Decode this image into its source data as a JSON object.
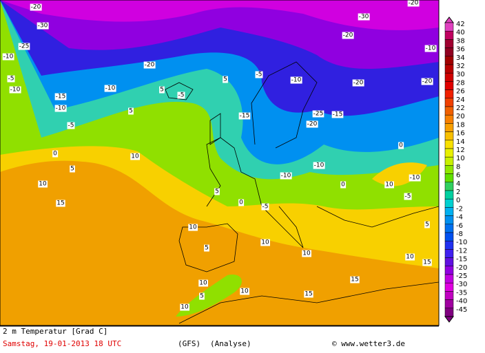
{
  "map": {
    "legend": [
      {
        "value": "42",
        "color": "#e040c0"
      },
      {
        "value": "40",
        "color": "#c00060"
      },
      {
        "value": "38",
        "color": "#a00030"
      },
      {
        "value": "36",
        "color": "#900020"
      },
      {
        "value": "34",
        "color": "#a00000"
      },
      {
        "value": "32",
        "color": "#b80000"
      },
      {
        "value": "30",
        "color": "#d00000"
      },
      {
        "value": "28",
        "color": "#e00000"
      },
      {
        "value": "26",
        "color": "#f02000"
      },
      {
        "value": "24",
        "color": "#f04000"
      },
      {
        "value": "22",
        "color": "#f06000"
      },
      {
        "value": "20",
        "color": "#f88000"
      },
      {
        "value": "18",
        "color": "#f8a000"
      },
      {
        "value": "16",
        "color": "#f8c000"
      },
      {
        "value": "14",
        "color": "#f8e000"
      },
      {
        "value": "12",
        "color": "#e8f000"
      },
      {
        "value": "10",
        "color": "#c8f000"
      },
      {
        "value": "8",
        "color": "#90e800"
      },
      {
        "value": "6",
        "color": "#60e000"
      },
      {
        "value": "4",
        "color": "#30d060"
      },
      {
        "value": "2",
        "color": "#00d0a0"
      },
      {
        "value": "0",
        "color": "#00d0d0"
      },
      {
        "value": "-2",
        "color": "#00b0f0"
      },
      {
        "value": "-4",
        "color": "#0090f0"
      },
      {
        "value": "-6",
        "color": "#0070f0"
      },
      {
        "value": "-8",
        "color": "#0050f0"
      },
      {
        "value": "-10",
        "color": "#2030f0"
      },
      {
        "value": "-12",
        "color": "#4020f0"
      },
      {
        "value": "-15",
        "color": "#6010e0"
      },
      {
        "value": "-20",
        "color": "#9000e0"
      },
      {
        "value": "-25",
        "color": "#c000e0"
      },
      {
        "value": "-30",
        "color": "#e000e0"
      },
      {
        "value": "-35",
        "color": "#c000c0"
      },
      {
        "value": "-40",
        "color": "#a000a0"
      },
      {
        "value": "-45",
        "color": "#800080"
      }
    ],
    "contour_labels": [
      "-20",
      "-30",
      "-25",
      "-10",
      "-5",
      "-10",
      "-15",
      "-10",
      "-5",
      "-10",
      "-20",
      "-5",
      "5",
      "5",
      "0",
      "5",
      "10",
      "15",
      "10",
      "5",
      "-5",
      "-10",
      "-15",
      "-20",
      "-25",
      "-10",
      "-10",
      "-5",
      "0",
      "5",
      "0",
      "10",
      "10",
      "5",
      "10",
      "10",
      "15",
      "15",
      "10",
      "10",
      "5",
      "10",
      "15",
      "10",
      "-10",
      "-20",
      "-30",
      "-20",
      "-15",
      "-20",
      "-20",
      "-10",
      "-5",
      "0",
      "5"
    ],
    "footer": {
      "title": "2 m Temperatur [Grad C]",
      "date": "Samstag, 19-01-2013  18 UTC",
      "model": "(GFS)",
      "run": "(Analyse)",
      "source": "© www.wetter3.de"
    }
  }
}
